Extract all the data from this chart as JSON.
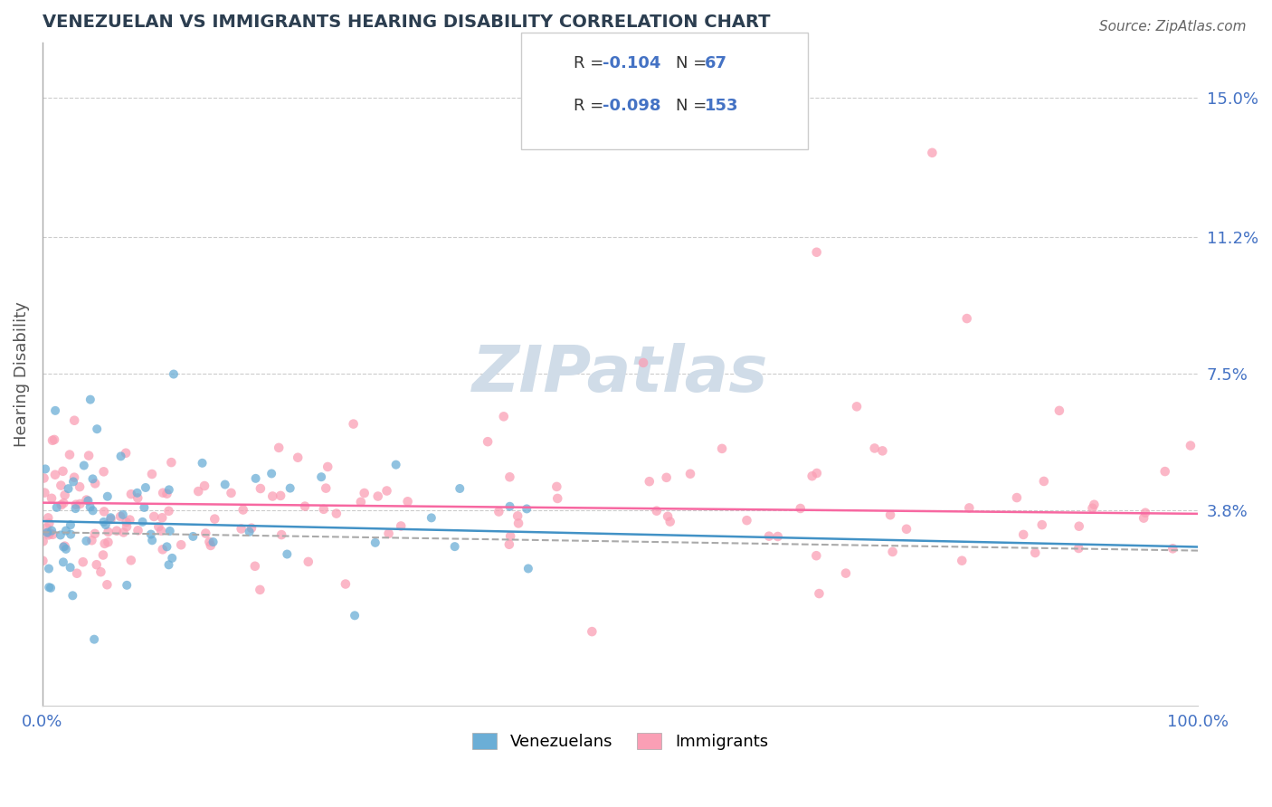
{
  "title": "VENEZUELAN VS IMMIGRANTS HEARING DISABILITY CORRELATION CHART",
  "source": "Source: ZipAtlas.com",
  "ylabel": "Hearing Disability",
  "xlabel": "",
  "xlim": [
    0.0,
    100.0
  ],
  "ylim": [
    -1.5,
    16.5
  ],
  "yticks": [
    3.8,
    7.5,
    11.2,
    15.0
  ],
  "ytick_labels": [
    "3.8%",
    "7.5%",
    "11.2%",
    "15.0%"
  ],
  "xtick_labels": [
    "0.0%",
    "100.0%"
  ],
  "blue_color": "#6baed6",
  "pink_color": "#fa9fb5",
  "blue_line_color": "#4292c6",
  "pink_line_color": "#f768a1",
  "dashed_color": "#aaaaaa",
  "title_color": "#2c3e50",
  "axis_label_color": "#4472c4",
  "watermark_color": "#d0dce8",
  "legend_label1": "Venezuelans",
  "legend_label2": "Immigrants",
  "blue_r": -0.104,
  "blue_n": 67,
  "pink_r": -0.098,
  "pink_n": 153,
  "seed": 42
}
